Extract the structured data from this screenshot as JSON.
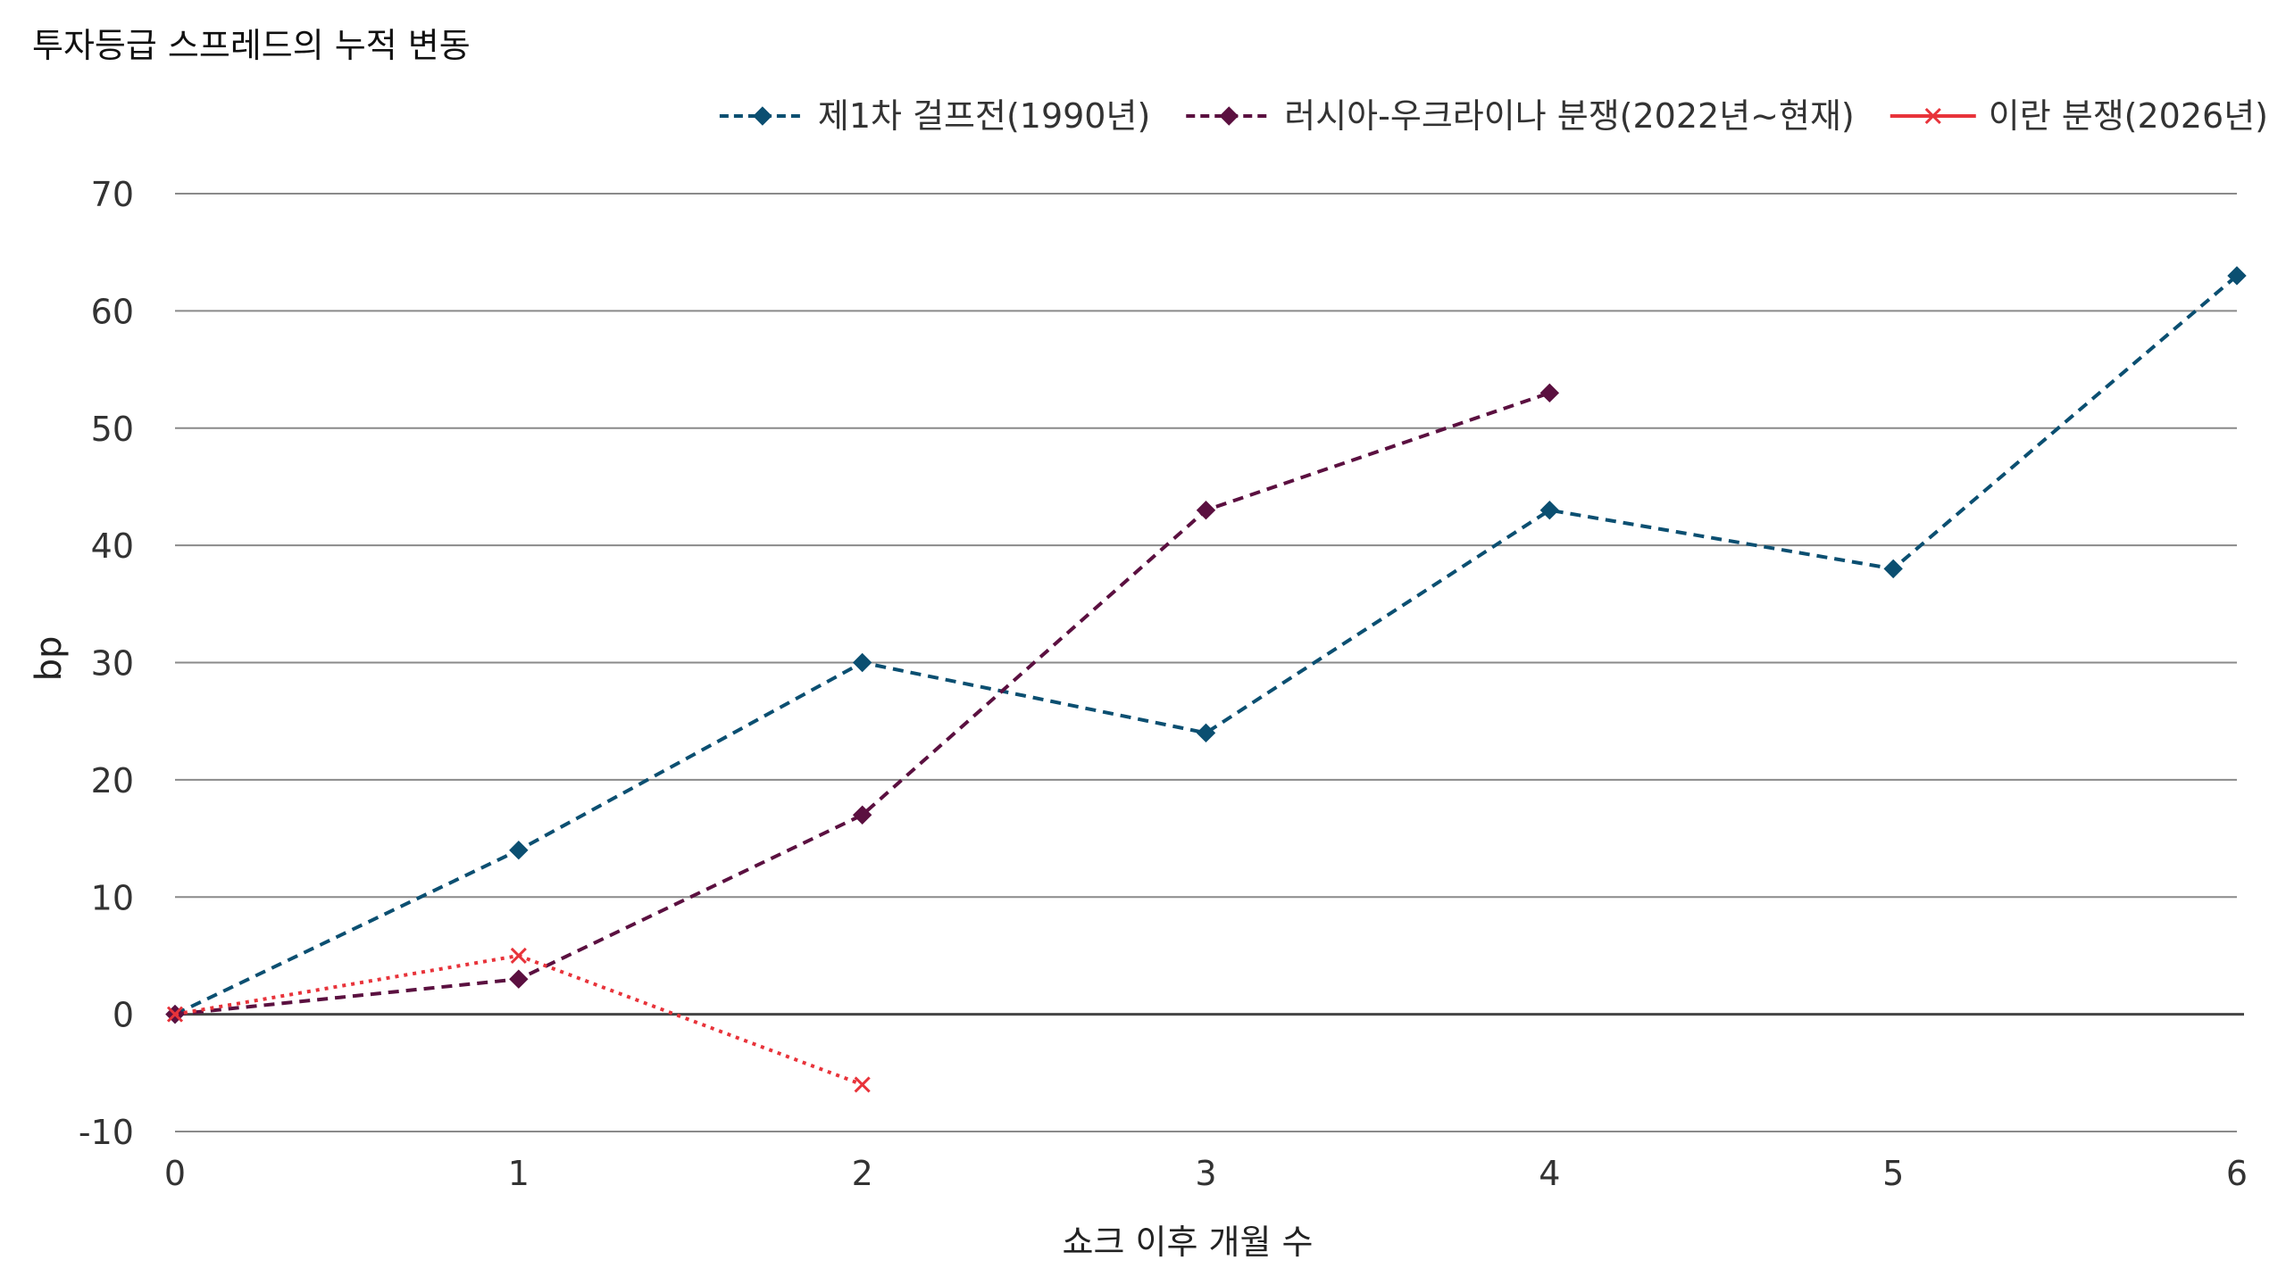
{
  "chart_data": {
    "type": "line",
    "title": "투자등급 스프레드의 누적 변동",
    "xlabel": "쇼크 이후 개월 수",
    "ylabel": "bp",
    "x": [
      0,
      1,
      2,
      3,
      4,
      5,
      6
    ],
    "xlim": [
      0,
      6
    ],
    "ylim": [
      -10,
      70
    ],
    "yticks": [
      -10,
      0,
      10,
      20,
      30,
      40,
      50,
      60,
      70
    ],
    "grid": true,
    "legend": "top-right",
    "series": [
      {
        "name": "제1차 걸프전(1990년)",
        "color": "#0b4f71",
        "marker": "diamond",
        "line_style": "dashed",
        "values": [
          0,
          14,
          30,
          24,
          43,
          38,
          63
        ]
      },
      {
        "name": "러시아-우크라이나 분쟁(2022년~현재)",
        "color": "#5b1040",
        "marker": "diamond",
        "line_style": "dashed",
        "values": [
          0,
          3,
          17,
          43,
          53,
          null,
          null
        ]
      },
      {
        "name": "이란 분쟁(2026년)",
        "color": "#e8333a",
        "marker": "x",
        "line_style": "dotted",
        "values": [
          0,
          5,
          -6,
          null,
          null,
          null,
          null
        ]
      }
    ]
  }
}
